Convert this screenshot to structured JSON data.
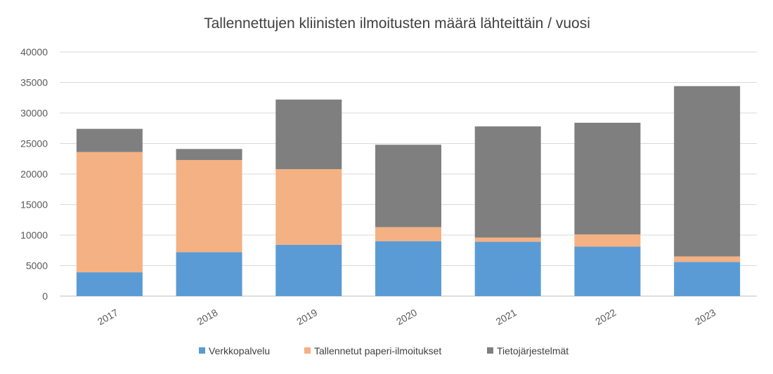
{
  "chart_data": {
    "type": "bar",
    "stacked": true,
    "title": "Tallennettujen kliinisten ilmoitusten määrä lähteittäin / vuosi",
    "xlabel": "",
    "ylabel": "",
    "categories": [
      "2017",
      "2018",
      "2019",
      "2020",
      "2021",
      "2022",
      "2023"
    ],
    "ylim": [
      0,
      40000
    ],
    "yticks": [
      "0",
      "5000",
      "10000",
      "15000",
      "20000",
      "25000",
      "30000",
      "35000",
      "40000"
    ],
    "grid": true,
    "legend_position": "bottom",
    "series": [
      {
        "name": "Verkkopalvelu",
        "color": "#5b9bd5",
        "values": [
          3900,
          7200,
          8400,
          9000,
          8900,
          8100,
          5600
        ]
      },
      {
        "name": "Tallennetut paperi-ilmoitukset",
        "color": "#f4b183",
        "values": [
          19700,
          15100,
          12400,
          2300,
          700,
          2000,
          900
        ]
      },
      {
        "name": "Tietojärjestelmät",
        "color": "#7f7f7f",
        "values": [
          3800,
          1800,
          11400,
          13500,
          18200,
          18300,
          27900
        ]
      }
    ]
  }
}
